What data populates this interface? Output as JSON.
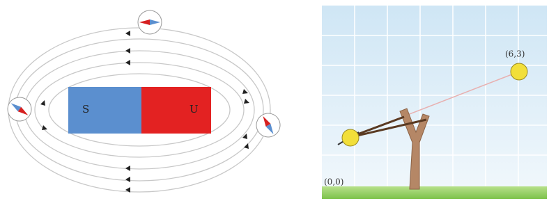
{
  "magnet": {
    "south_label": "S",
    "north_label": "U"
  },
  "slingshot": {
    "target_label": "(6,3)",
    "origin_label": "(0,0)"
  }
}
